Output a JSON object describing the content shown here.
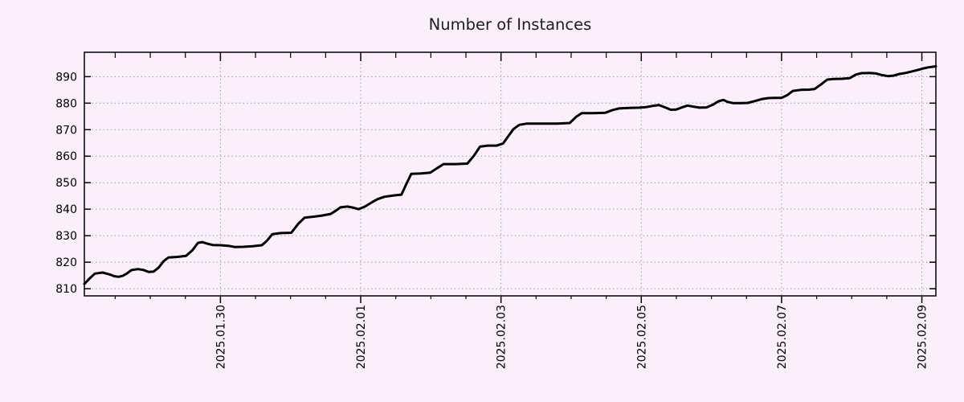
{
  "window": {
    "background_color": "#fbeffb"
  },
  "chart_data": {
    "type": "line",
    "title": "Number of Instances",
    "series_name": "instances",
    "legend": "none",
    "grid": "dotted",
    "grid_color": "#9a9a9a",
    "line_color": "#000000",
    "line_width": 3,
    "axis_color": "#000000",
    "text_color": "#000000",
    "x_axis": {
      "unit": "days since 2025-01-28 00:00",
      "range": [
        0.06,
        12.2
      ],
      "label_rotation_deg": -90,
      "minor_tick_interval_days": 0.5,
      "major_ticks": [
        {
          "day": 2,
          "label": "2025.01.30"
        },
        {
          "day": 4,
          "label": "2025.02.01"
        },
        {
          "day": 6,
          "label": "2025.02.03"
        },
        {
          "day": 8,
          "label": "2025.02.05"
        },
        {
          "day": 10,
          "label": "2025.02.07"
        },
        {
          "day": 12,
          "label": "2025.02.09"
        }
      ]
    },
    "y_axis": {
      "range": [
        807.3,
        899.2
      ],
      "ticks": [
        810,
        820,
        830,
        840,
        850,
        860,
        870,
        880,
        890
      ]
    },
    "points": [
      [
        0.06,
        811.8
      ],
      [
        0.14,
        814.0
      ],
      [
        0.21,
        815.7
      ],
      [
        0.32,
        816.1
      ],
      [
        0.42,
        815.4
      ],
      [
        0.49,
        814.7
      ],
      [
        0.55,
        814.5
      ],
      [
        0.61,
        814.9
      ],
      [
        0.66,
        815.6
      ],
      [
        0.73,
        817.0
      ],
      [
        0.82,
        817.4
      ],
      [
        0.9,
        817.1
      ],
      [
        0.98,
        816.3
      ],
      [
        1.05,
        816.5
      ],
      [
        1.12,
        818.0
      ],
      [
        1.19,
        820.4
      ],
      [
        1.26,
        821.8
      ],
      [
        1.39,
        822.0
      ],
      [
        1.51,
        822.4
      ],
      [
        1.6,
        824.5
      ],
      [
        1.68,
        827.3
      ],
      [
        1.74,
        827.6
      ],
      [
        1.81,
        827.0
      ],
      [
        1.89,
        826.5
      ],
      [
        2.0,
        826.4
      ],
      [
        2.11,
        826.2
      ],
      [
        2.21,
        825.7
      ],
      [
        2.32,
        825.8
      ],
      [
        2.46,
        826.0
      ],
      [
        2.59,
        826.4
      ],
      [
        2.66,
        828.0
      ],
      [
        2.74,
        830.6
      ],
      [
        2.86,
        831.0
      ],
      [
        3.01,
        831.1
      ],
      [
        3.11,
        834.5
      ],
      [
        3.2,
        836.8
      ],
      [
        3.34,
        837.2
      ],
      [
        3.45,
        837.6
      ],
      [
        3.57,
        838.2
      ],
      [
        3.65,
        839.5
      ],
      [
        3.71,
        840.7
      ],
      [
        3.81,
        841.0
      ],
      [
        3.89,
        840.6
      ],
      [
        3.97,
        840.0
      ],
      [
        4.06,
        841.0
      ],
      [
        4.16,
        842.6
      ],
      [
        4.24,
        843.8
      ],
      [
        4.34,
        844.7
      ],
      [
        4.48,
        845.2
      ],
      [
        4.58,
        845.5
      ],
      [
        4.65,
        849.5
      ],
      [
        4.72,
        853.3
      ],
      [
        4.86,
        853.5
      ],
      [
        4.99,
        853.8
      ],
      [
        5.09,
        855.5
      ],
      [
        5.18,
        857.0
      ],
      [
        5.35,
        857.0
      ],
      [
        5.52,
        857.2
      ],
      [
        5.61,
        860.0
      ],
      [
        5.7,
        863.6
      ],
      [
        5.81,
        864.0
      ],
      [
        5.94,
        864.0
      ],
      [
        6.03,
        864.8
      ],
      [
        6.13,
        868.5
      ],
      [
        6.18,
        870.3
      ],
      [
        6.26,
        871.8
      ],
      [
        6.37,
        872.3
      ],
      [
        6.57,
        872.3
      ],
      [
        6.8,
        872.3
      ],
      [
        6.98,
        872.5
      ],
      [
        7.07,
        874.8
      ],
      [
        7.15,
        876.2
      ],
      [
        7.31,
        876.2
      ],
      [
        7.49,
        876.4
      ],
      [
        7.59,
        877.4
      ],
      [
        7.68,
        878.0
      ],
      [
        7.83,
        878.2
      ],
      [
        7.97,
        878.3
      ],
      [
        8.07,
        878.5
      ],
      [
        8.17,
        879.0
      ],
      [
        8.25,
        879.3
      ],
      [
        8.34,
        878.4
      ],
      [
        8.42,
        877.5
      ],
      [
        8.5,
        877.6
      ],
      [
        8.58,
        878.4
      ],
      [
        8.66,
        879.1
      ],
      [
        8.74,
        878.7
      ],
      [
        8.83,
        878.3
      ],
      [
        8.93,
        878.4
      ],
      [
        9.02,
        879.4
      ],
      [
        9.1,
        880.7
      ],
      [
        9.17,
        881.2
      ],
      [
        9.23,
        880.5
      ],
      [
        9.31,
        880.0
      ],
      [
        9.42,
        880.0
      ],
      [
        9.52,
        880.1
      ],
      [
        9.62,
        880.8
      ],
      [
        9.71,
        881.5
      ],
      [
        9.81,
        881.9
      ],
      [
        9.9,
        882.0
      ],
      [
        10.0,
        882.0
      ],
      [
        10.08,
        883.0
      ],
      [
        10.16,
        884.6
      ],
      [
        10.27,
        885.0
      ],
      [
        10.39,
        885.1
      ],
      [
        10.47,
        885.3
      ],
      [
        10.56,
        887.0
      ],
      [
        10.65,
        888.9
      ],
      [
        10.74,
        889.1
      ],
      [
        10.86,
        889.2
      ],
      [
        10.97,
        889.4
      ],
      [
        11.06,
        890.8
      ],
      [
        11.14,
        891.3
      ],
      [
        11.26,
        891.4
      ],
      [
        11.35,
        891.2
      ],
      [
        11.43,
        890.6
      ],
      [
        11.52,
        890.2
      ],
      [
        11.6,
        890.4
      ],
      [
        11.68,
        891.0
      ],
      [
        11.77,
        891.4
      ],
      [
        11.85,
        891.9
      ],
      [
        11.94,
        892.5
      ],
      [
        12.02,
        893.1
      ],
      [
        12.09,
        893.5
      ],
      [
        12.2,
        893.9
      ]
    ]
  }
}
